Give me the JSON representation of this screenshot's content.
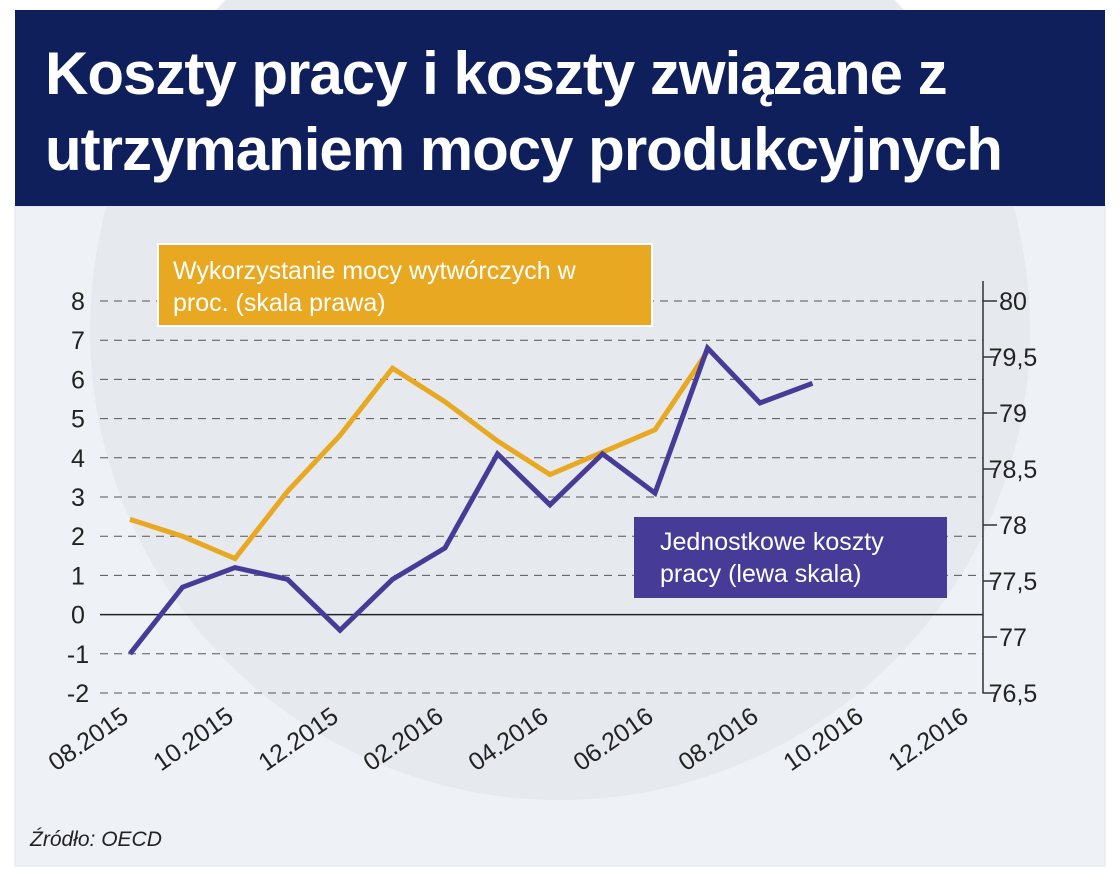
{
  "chart_data": {
    "type": "line",
    "title": "Koszty pracy i koszty związane z utrzymaniem mocy produkcyjnych",
    "source": "Źródło: OECD",
    "categories": [
      "08.2015",
      null,
      "10.2015",
      null,
      "12.2015",
      null,
      "02.2016",
      null,
      "04.2016",
      null,
      "06.2016",
      null,
      "08.2016",
      null,
      "10.2016",
      null,
      "12.2016"
    ],
    "series": [
      {
        "name": "Jednostkowe koszty pracy (lewa skala)",
        "color": "#463c97",
        "values": [
          -1.0,
          0.7,
          1.2,
          0.9,
          -0.4,
          0.9,
          1.7,
          4.1,
          2.8,
          4.1,
          3.1,
          6.8,
          5.4,
          5.9,
          null,
          null,
          null
        ]
      },
      {
        "name": "Wykorzystanie mocy wytwórczych w proc. (skala prawa)",
        "color": "#e8a821",
        "axis": "y2",
        "values": [
          78.05,
          77.9,
          77.7,
          78.3,
          78.8,
          79.4,
          79.1,
          78.75,
          78.45,
          78.65,
          78.85,
          79.55,
          null,
          null,
          null,
          null,
          null
        ]
      }
    ],
    "ylim": [
      -2,
      8
    ],
    "yticks": [
      -2,
      -1,
      0,
      1,
      2,
      3,
      4,
      5,
      6,
      7,
      8
    ],
    "y2lim": [
      76.5,
      80
    ],
    "y2ticks": [
      {
        "value": 76.5,
        "label": "76,5"
      },
      77,
      {
        "value": 77.5,
        "label": "77,5"
      },
      78,
      {
        "value": 78.5,
        "label": "78,5"
      },
      79,
      {
        "value": 79.5,
        "label": "79,5"
      },
      80
    ],
    "grid": true
  }
}
